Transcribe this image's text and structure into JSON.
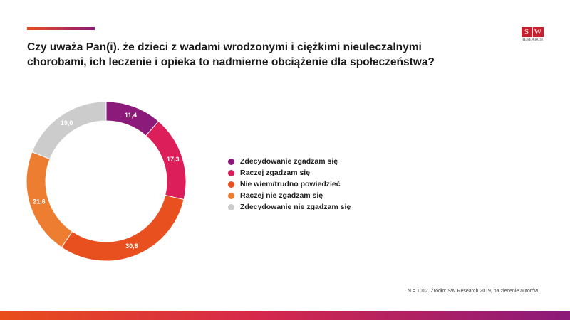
{
  "title": "Czy uważa Pan(i). że dzieci z wadami wrodzonymi i ciężkimi nieuleczalnymi chorobami, ich leczenie i opieka to nadmierne obciążenie dla społeczeństwa?",
  "logo": {
    "letters": [
      "S",
      "W"
    ],
    "subtitle": "RESEARCH"
  },
  "source": "N = 1012. Źródło: SW Research 2019, na zlecenie autorów.",
  "colors": {
    "accent_orange": "#e94e1b",
    "accent_purple": "#8b1a7a",
    "logo_red": "#c8202f"
  },
  "chart_data": {
    "type": "pie",
    "variant": "donut",
    "legend_position": "right",
    "slices": [
      {
        "label": "Zdecydowanie zgadzam się",
        "value": 11.4,
        "display": "11,4",
        "color": "#8b1a7a"
      },
      {
        "label": "Raczej zgadzam się",
        "value": 17.3,
        "display": "17,3",
        "color": "#dc1f5a"
      },
      {
        "label": "Nie wiem/trudno powiedzieć",
        "value": 30.8,
        "display": "30,8",
        "color": "#e8501f"
      },
      {
        "label": "Raczej nie zgadzam się",
        "value": 21.6,
        "display": "21,6",
        "color": "#ed7d31"
      },
      {
        "label": "Zdecydowanie nie zgadzam się",
        "value": 19.0,
        "display": "19,0",
        "color": "#cccccc"
      }
    ]
  }
}
